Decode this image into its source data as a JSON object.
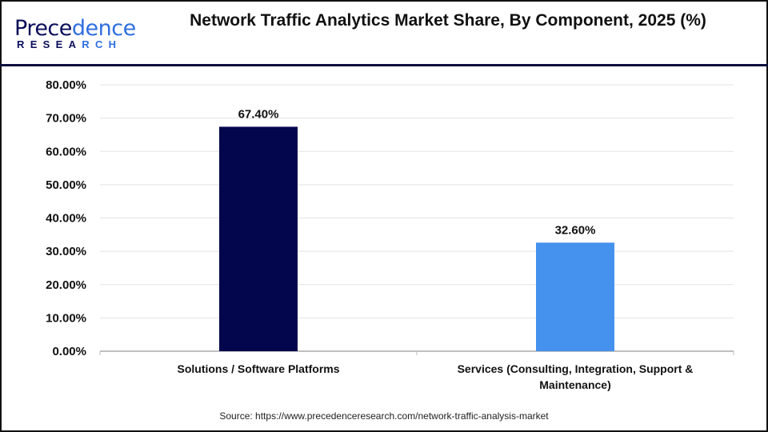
{
  "logo": {
    "text_main": "Precedence",
    "text_sub": "RESEARCH"
  },
  "title": "Network Traffic Analytics Market Share, By Component, 2025 (%)",
  "source": "Source: https://www.precedenceresearch.com/network-traffic-analysis-market",
  "chart_data": {
    "type": "bar",
    "title": "Network Traffic Analytics Market Share, By Component, 2025 (%)",
    "categories": [
      "Solutions / Software Platforms",
      "Services (Consulting, Integration, Support & Maintenance)"
    ],
    "values": [
      67.4,
      32.6
    ],
    "data_labels": [
      "67.40%",
      "32.60%"
    ],
    "colors": [
      "#03064d",
      "#4591ee"
    ],
    "ylim": [
      0,
      80
    ],
    "yticks": [
      0,
      10,
      20,
      30,
      40,
      50,
      60,
      70,
      80
    ],
    "ytick_labels": [
      "0.00%",
      "10.00%",
      "20.00%",
      "30.00%",
      "40.00%",
      "50.00%",
      "60.00%",
      "70.00%",
      "80.00%"
    ],
    "grid": true,
    "xlabel": "",
    "ylabel": ""
  }
}
